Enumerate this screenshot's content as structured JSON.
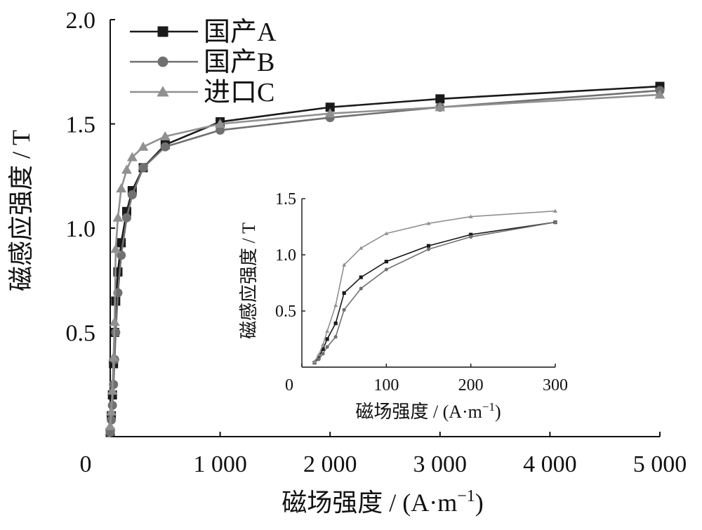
{
  "main": {
    "xlabel": "磁场强度 / (A·m",
    "xlabel_sup": "−1",
    "xlabel_close": ")",
    "ylabel": "磁感应强度 / T",
    "xticks": [
      {
        "v": 0,
        "label": "0"
      },
      {
        "v": 1000,
        "label": "1 000"
      },
      {
        "v": 2000,
        "label": "2 000"
      },
      {
        "v": 3000,
        "label": "3 000"
      },
      {
        "v": 4000,
        "label": "4 000"
      },
      {
        "v": 5000,
        "label": "5 000"
      }
    ],
    "yticks": [
      {
        "v": 0.5,
        "label": "0.5"
      },
      {
        "v": 1.0,
        "label": "1.0"
      },
      {
        "v": 1.5,
        "label": "1.5"
      },
      {
        "v": 2.0,
        "label": "2.0"
      }
    ]
  },
  "inset": {
    "xlabel": "磁场强度 / (A·m",
    "xlabel_sup": "−1",
    "xlabel_close": ")",
    "ylabel": "磁感应强度 / T",
    "xticks": [
      {
        "v": 0,
        "label": "0"
      },
      {
        "v": 100,
        "label": "100"
      },
      {
        "v": 200,
        "label": "200"
      },
      {
        "v": 300,
        "label": "300"
      }
    ],
    "yticks": [
      {
        "v": 0.5,
        "label": "0.5"
      },
      {
        "v": 1.0,
        "label": "1.0"
      },
      {
        "v": 1.5,
        "label": "1.5"
      }
    ]
  },
  "chart_data": [
    {
      "type": "line",
      "xlim": [
        0,
        5000
      ],
      "ylim": [
        0,
        2.0
      ],
      "grid": false,
      "legend": "top-left",
      "series": [
        {
          "name": "国产A",
          "color": "#1a1a1a",
          "marker": "square",
          "x": [
            0,
            10,
            20,
            30,
            40,
            50,
            70,
            100,
            150,
            200,
            300,
            500,
            1000,
            2000,
            3000,
            5000
          ],
          "y": [
            0.02,
            0.1,
            0.2,
            0.35,
            0.5,
            0.65,
            0.79,
            0.93,
            1.08,
            1.18,
            1.29,
            1.4,
            1.51,
            1.58,
            1.62,
            1.68
          ]
        },
        {
          "name": "国产B",
          "color": "#707070",
          "marker": "circle",
          "x": [
            0,
            10,
            20,
            30,
            40,
            50,
            70,
            100,
            150,
            200,
            300,
            500,
            1000,
            2000,
            3000,
            5000
          ],
          "y": [
            0.02,
            0.08,
            0.15,
            0.25,
            0.37,
            0.5,
            0.69,
            0.87,
            1.05,
            1.16,
            1.29,
            1.39,
            1.47,
            1.53,
            1.58,
            1.66
          ]
        },
        {
          "name": "进口C",
          "color": "#909090",
          "marker": "triangle",
          "x": [
            0,
            10,
            20,
            30,
            40,
            50,
            70,
            100,
            150,
            200,
            300,
            500,
            1000,
            2000,
            3000,
            5000
          ],
          "y": [
            0.05,
            0.12,
            0.22,
            0.38,
            0.55,
            0.9,
            1.05,
            1.19,
            1.28,
            1.34,
            1.39,
            1.44,
            1.5,
            1.55,
            1.58,
            1.64
          ]
        }
      ]
    },
    {
      "type": "line",
      "xlim": [
        0,
        300
      ],
      "ylim": [
        0,
        1.5
      ],
      "grid": false,
      "series": [
        {
          "color": "#1a1a1a",
          "marker": "square",
          "x": [
            15,
            20,
            25,
            30,
            40,
            50,
            70,
            100,
            150,
            200,
            300
          ],
          "y": [
            0.04,
            0.09,
            0.16,
            0.25,
            0.39,
            0.66,
            0.8,
            0.94,
            1.08,
            1.18,
            1.29
          ]
        },
        {
          "color": "#707070",
          "marker": "circle",
          "x": [
            15,
            20,
            25,
            30,
            40,
            50,
            70,
            100,
            150,
            200,
            300
          ],
          "y": [
            0.04,
            0.07,
            0.12,
            0.18,
            0.27,
            0.51,
            0.7,
            0.87,
            1.05,
            1.16,
            1.29
          ]
        },
        {
          "color": "#909090",
          "marker": "triangle",
          "x": [
            15,
            20,
            25,
            30,
            40,
            50,
            70,
            100,
            150,
            200,
            300
          ],
          "y": [
            0.05,
            0.11,
            0.2,
            0.32,
            0.55,
            0.91,
            1.06,
            1.19,
            1.28,
            1.34,
            1.39
          ]
        }
      ]
    }
  ]
}
